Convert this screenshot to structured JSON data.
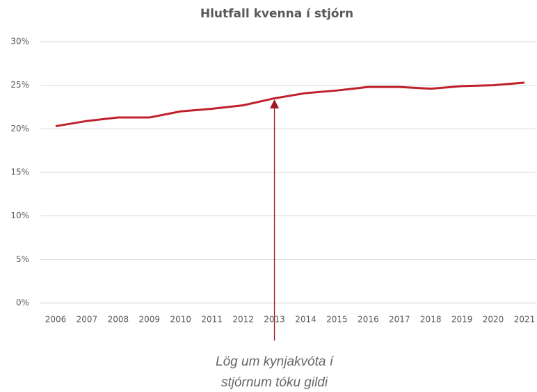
{
  "chart_data": {
    "type": "line",
    "title": "Hlutfall kvenna í stjórn",
    "categories": [
      "2006",
      "2007",
      "2008",
      "2009",
      "2010",
      "2011",
      "2012",
      "2013",
      "2014",
      "2015",
      "2016",
      "2017",
      "2018",
      "2019",
      "2020",
      "2021"
    ],
    "series": [
      {
        "name": "Hlutfall kvenna í stjórn",
        "color": "#c0202a",
        "values": [
          20.3,
          20.9,
          21.3,
          21.3,
          22.0,
          22.3,
          22.7,
          23.5,
          24.1,
          24.4,
          24.8,
          24.8,
          24.6,
          24.9,
          25.0,
          25.3
        ]
      }
    ],
    "ylim": [
      0,
      30
    ],
    "yticks": [
      {
        "value": 0,
        "label": "0%"
      },
      {
        "value": 5,
        "label": "5%"
      },
      {
        "value": 10,
        "label": "10%"
      },
      {
        "value": 15,
        "label": "15%"
      },
      {
        "value": 20,
        "label": "20%"
      },
      {
        "value": 25,
        "label": "25%"
      },
      {
        "value": 30,
        "label": "30%"
      }
    ],
    "grid": true,
    "annotation": {
      "text": [
        "Lög um kynjakvóta í",
        "stjórnum tóku gildi"
      ],
      "x": "2013"
    }
  }
}
